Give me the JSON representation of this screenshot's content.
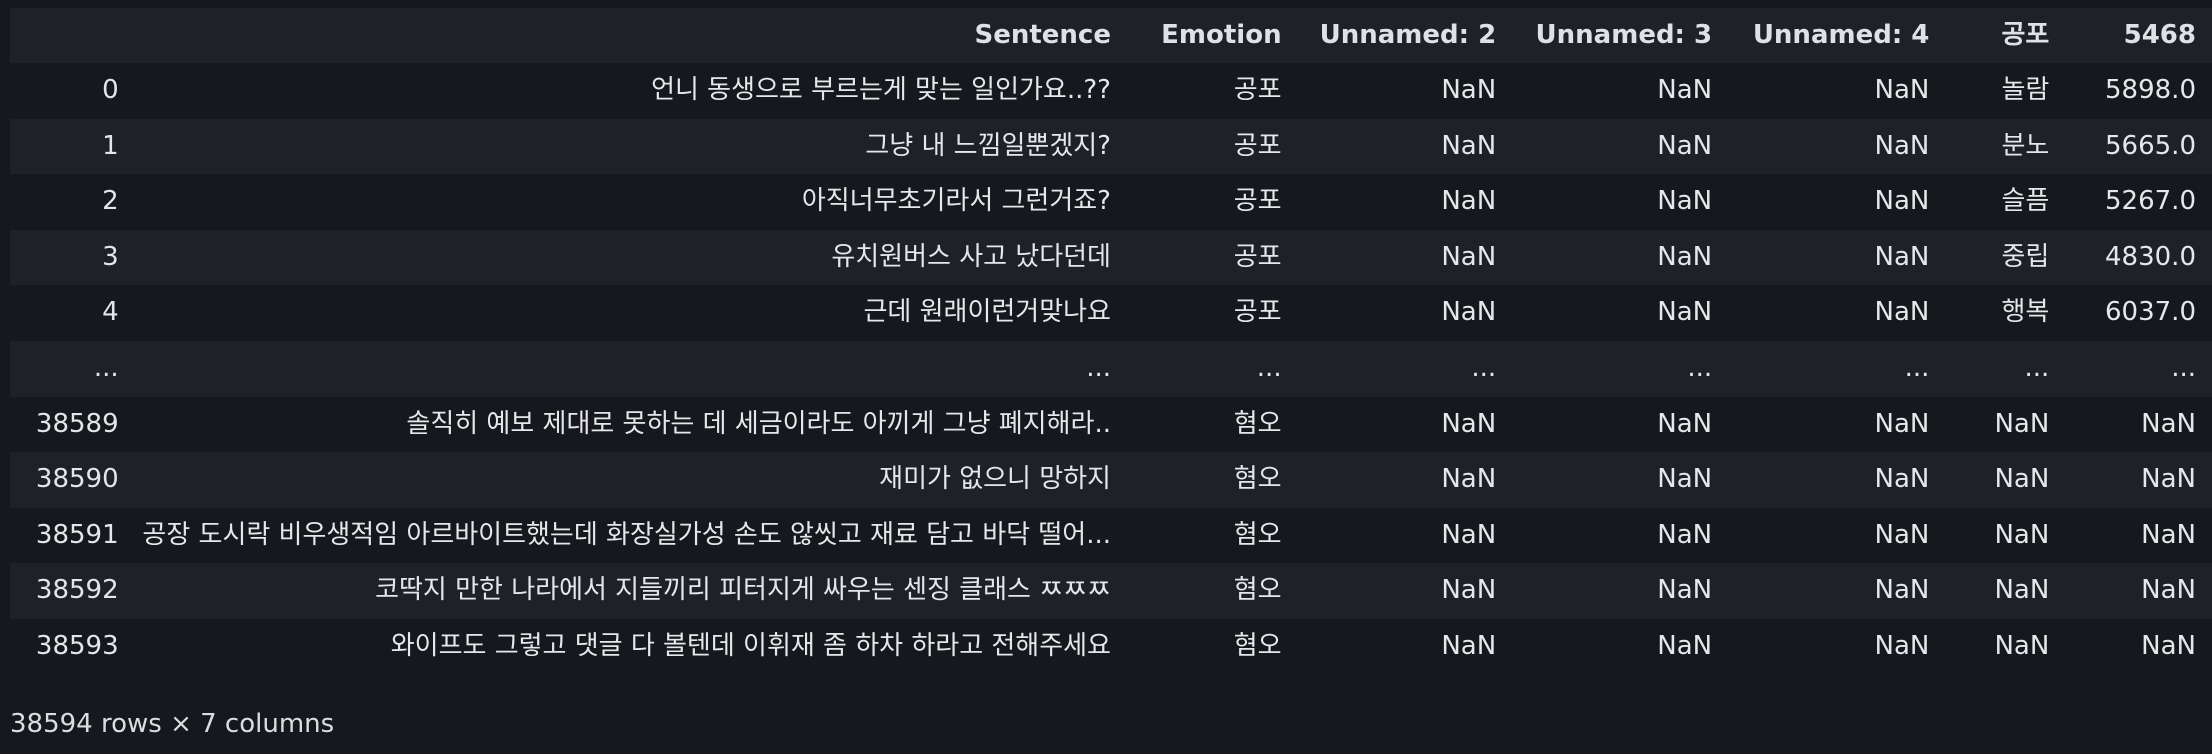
{
  "table": {
    "columns": [
      "",
      "Sentence",
      "Emotion",
      "Unnamed: 2",
      "Unnamed: 3",
      "Unnamed: 4",
      "공포",
      "5468"
    ],
    "rows": [
      [
        "0",
        "언니 동생으로 부르는게 맞는 일인가요..??",
        "공포",
        "NaN",
        "NaN",
        "NaN",
        "놀람",
        "5898.0"
      ],
      [
        "1",
        "그냥 내 느낌일뿐겠지?",
        "공포",
        "NaN",
        "NaN",
        "NaN",
        "분노",
        "5665.0"
      ],
      [
        "2",
        "아직너무초기라서 그런거죠?",
        "공포",
        "NaN",
        "NaN",
        "NaN",
        "슬픔",
        "5267.0"
      ],
      [
        "3",
        "유치원버스 사고 났다던데",
        "공포",
        "NaN",
        "NaN",
        "NaN",
        "중립",
        "4830.0"
      ],
      [
        "4",
        "근데 원래이런거맞나요",
        "공포",
        "NaN",
        "NaN",
        "NaN",
        "행복",
        "6037.0"
      ],
      [
        "...",
        "...",
        "...",
        "...",
        "...",
        "...",
        "...",
        "..."
      ],
      [
        "38589",
        "솔직히 예보 제대로 못하는 데 세금이라도 아끼게 그냥 폐지해라..",
        "혐오",
        "NaN",
        "NaN",
        "NaN",
        "NaN",
        "NaN"
      ],
      [
        "38590",
        "재미가 없으니 망하지",
        "혐오",
        "NaN",
        "NaN",
        "NaN",
        "NaN",
        "NaN"
      ],
      [
        "38591",
        "공장 도시락 비우생적임 아르바이트했는데 화장실가성 손도 않씻고 재료 담고 바닥 떨어...",
        "혐오",
        "NaN",
        "NaN",
        "NaN",
        "NaN",
        "NaN"
      ],
      [
        "38592",
        "코딱지 만한 나라에서 지들끼리 피터지게 싸우는 센징 클래스 ㅉㅉㅉ",
        "혐오",
        "NaN",
        "NaN",
        "NaN",
        "NaN",
        "NaN"
      ],
      [
        "38593",
        "와이프도 그렇고 댓글 다 볼텐데 이휘재 좀 하차 하라고 전해주세요",
        "혐오",
        "NaN",
        "NaN",
        "NaN",
        "NaN",
        "NaN"
      ]
    ]
  },
  "summary": "38594 rows × 7 columns"
}
